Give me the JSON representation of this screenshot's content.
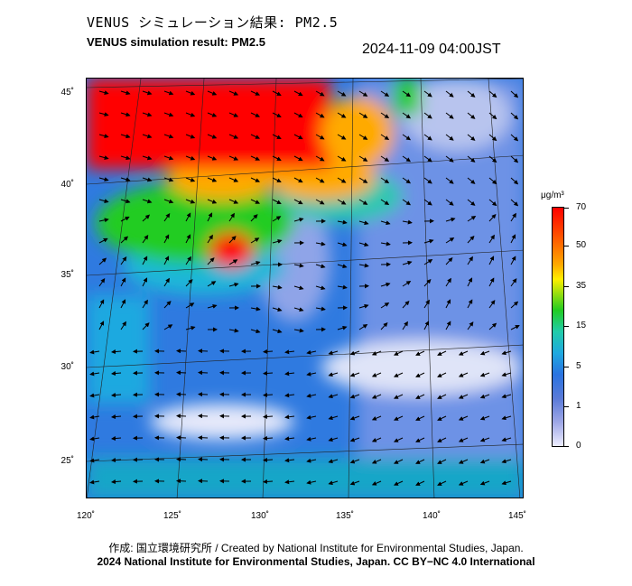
{
  "header": {
    "title_ja": "VENUS シミュレーション結果: PM2.5",
    "title_en": "VENUS simulation result: PM2.5",
    "timestamp": "2024-11-09 04:00JST"
  },
  "map": {
    "variable": "PM2.5",
    "lon_labels": [
      "120˚",
      "125˚",
      "130˚",
      "135˚",
      "140˚",
      "145˚"
    ],
    "lat_labels": [
      "45˚",
      "40˚",
      "35˚",
      "30˚",
      "25˚"
    ],
    "colors": {
      "very_high": "#ff0000",
      "high": "#ffaa00",
      "mid": "#22cc22",
      "low": "#1fa9e0",
      "very_low": "#2a73e0",
      "clean": "#eeeeff"
    }
  },
  "colorbar": {
    "unit": "μg/m³",
    "levels": [
      "70",
      "50",
      "35",
      "15",
      "5",
      "1",
      "0"
    ]
  },
  "footer": {
    "credit_line1": "作成: 国立環境研究所 / Created by National Institute for Environmental Studies, Japan.",
    "credit_line2": "2024 National Institute for Environmental Studies, Japan. CC BY−NC 4.0 International"
  }
}
